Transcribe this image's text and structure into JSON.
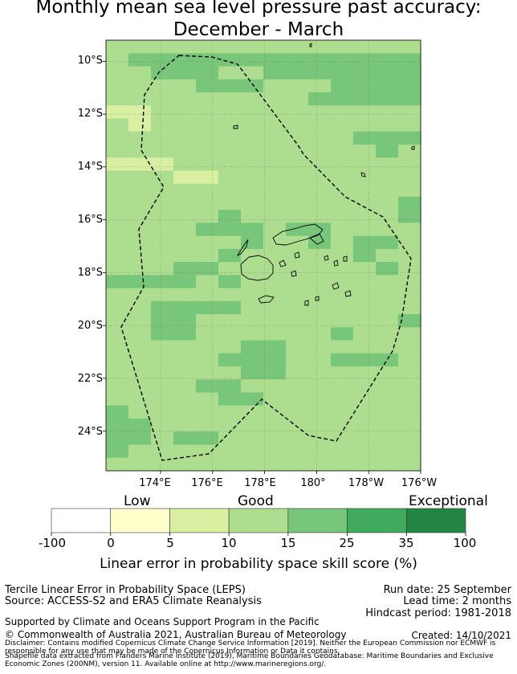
{
  "title": {
    "line1": "Monthly mean sea level pressure past accuracy:",
    "line2": "December - March"
  },
  "map": {
    "lat_ticks": [
      "10°S",
      "12°S",
      "14°S",
      "16°S",
      "18°S",
      "20°S",
      "22°S",
      "24°S"
    ],
    "lon_ticks": [
      "174°E",
      "176°E",
      "178°E",
      "180°",
      "178°W",
      "176°W"
    ],
    "lon_range_deg_east": [
      171.9,
      184.0
    ],
    "lat_range_deg": [
      -25.5,
      -9.2
    ],
    "grid_cell_deg": 0.83,
    "skill_grid_classes": "0=0-5 light yellow, 1=5-10 pale green, 2=10-15 good green, 3=15-25 medium green; rows north to south, columns west to east",
    "skill_grid": [
      "22222222222222",
      "23333333333333",
      "22333223333333",
      "22223332223333",
      "22222222233333",
      "11222222222222",
      "21222222222222",
      "22222222222333",
      "22222222222232",
      "11122222222222",
      "22211222222222",
      "22222222222222",
      "22222222222223",
      "22222322222223",
      "22223332332222",
      "22222232232332",
      "22222322222322",
      "22233222222232",
      "33332322222222",
      "22222222222222",
      "22333322222222",
      "22332222222223",
      "22332222223222",
      "22222233222222",
      "22222333223332",
      "22222233222222",
      "22223322222222",
      "22222332222222",
      "32222222222222",
      "33222222222222",
      "33233222222222",
      "32222222222222",
      "22222222222222"
    ]
  },
  "colorbar": {
    "category_labels": [
      "Low",
      "Good",
      "Exceptional"
    ],
    "ticks": [
      "-100",
      "0",
      "5",
      "10",
      "15",
      "25",
      "35",
      "100"
    ],
    "colors": [
      "#ffffff",
      "#ffffcc",
      "#d9f0a3",
      "#addd8e",
      "#78c679",
      "#41ab5d",
      "#238443"
    ],
    "title": "Linear error in probability space skill score (%)"
  },
  "info": {
    "method": "Tercile Linear Error in Probability Space (LEPS)",
    "source": "Source: ACCESS-S2 and ERA5 Climate Reanalysis",
    "run_date": "Run date: 25 September",
    "lead_time": "Lead time: 2 months",
    "hindcast": "Hindcast period: 1981-2018",
    "support": "Supported by Climate and Oceans Support Program in the Pacific",
    "copyright": "© Commonwealth of Australia 2021, Australian Bureau of Meteorology",
    "created": "Created: 14/10/2021",
    "disclaimer": "Disclaimer: Contains modified Copernicus Climate Change Service Information [2019]. Neither the European Commission nor ECMWF is responsible for any use that may be made of the Copernicus Information or Data it contains.",
    "shapefile": "Shapefile data extracted from Flanders Marine Institute (2019), Maritime Boundaries Geodatabase: Maritime Boundaries and Exclusive Economic Zones (200NM), version 11. Available online at http://www.marineregions.org/."
  }
}
